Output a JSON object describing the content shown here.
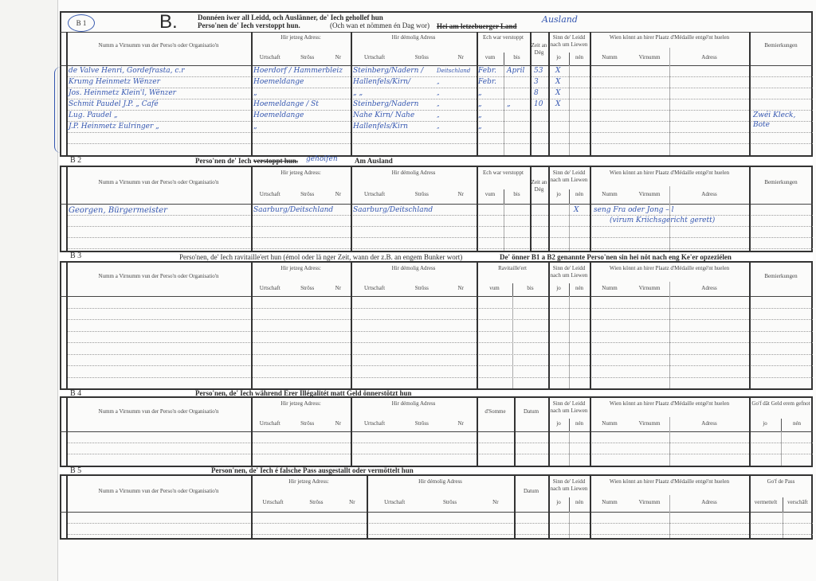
{
  "header": {
    "badge": "B 1",
    "big_letter": "B.",
    "title_line1": "Donnéen iwer all Leidd, och Auslänner, de' Iech gehollef hun",
    "title_line2": "Perso'nen de' Iech verstoppt hun.",
    "title_line2_note": "(Och wan et nömmen én Dag wor)",
    "struck_text": "Hei am letzebuerger Land",
    "handwritten_annotation": "Ausland"
  },
  "labels": {
    "name": "Numm a Virnumm vun der Perso'n oder Organisatio'n",
    "current_address": "Hir jetzeg Adress:",
    "former_address": "Hir démolig Adress",
    "urtschaft": "Urtschaft",
    "stross": "Strôss",
    "nr": "Nr",
    "hidden": "Ech war verstoppt",
    "vum": "vum",
    "bis": "bis",
    "zeit": "Zeit an Dég",
    "alive": "Sinn de' Leidd nach um Liewen",
    "jo": "jo",
    "nen": "nén",
    "medal": "Wien könnt an hirer Plaatz d'Médaille entgé'nt huelen",
    "numm": "Numm",
    "virnumm": "Virnumm",
    "adress": "Adress",
    "remarks": "Bemierkungen",
    "ravitailleert": "Ravitaille'ert",
    "somme": "d'Somme",
    "datum": "Datum",
    "geld": "Go'f dât Geld erem gefnot",
    "pass": "Go'f de Pass",
    "vermettelt": "vermettelt",
    "verschaft": "verschâft"
  },
  "sections": {
    "b2": {
      "code": "B 2",
      "title_pre": "Perso'nen de' Iech",
      "title_struck": "verstoppt hun.",
      "title_handwritten": "geholfen",
      "title_post": "Am Ausland"
    },
    "b3": {
      "code": "B 3",
      "title": "Perso'nen, de' Iech ravitaille'ert hun (émol oder lä nger Zeit, wann der z.B. an engem Bunker wort)",
      "title_bold": "De' önner B1 a B2 genannte Perso'nen sin hei nöt nach eng Ke'er opzeziélen"
    },
    "b4": {
      "code": "B 4",
      "title": "Perso'nen, de' Iech während Erer Illégalitét matt Geld önnerstötzt hun"
    },
    "b5": {
      "code": "B 5",
      "title": "Person'nen, de' Iech é falsche Pass ausgestallt oder vermöttelt hun"
    }
  },
  "b1_rows": [
    {
      "name": "de Valve Henri, Gordefrasta, c.r",
      "current": "Hoerdorf / Hammerbleiz",
      "former": "Steinberg/Nadern /",
      "former_country": "Deitschland",
      "vum": "Febr.",
      "bis": "April",
      "zeit": "53",
      "jo": "X"
    },
    {
      "name": "Krumg Heinmetz Wënzer",
      "current": "Hoemeldange",
      "former": "Hallenfels/Kirn/",
      "former_country": "„",
      "vum": "Febr.",
      "zeit": "3",
      "jo": "X"
    },
    {
      "name": "Jos. Heinmetz Klein'l, Wënzer",
      "current": "„",
      "former": "„      „",
      "former_country": "„",
      "vum": "„",
      "zeit": "8",
      "jo": "X"
    },
    {
      "name": "Schmit Paudel J.P.   „   Café",
      "current": "Hoemeldange / St",
      "former": "Steinberg/Nadern",
      "former_country": "„",
      "vum": "„",
      "bis": "„",
      "zeit": "10",
      "jo": "X"
    },
    {
      "name": "Lug. Paudel      „",
      "current": "Hoemeldange",
      "former": "Nahe Kirn/ Nahe",
      "former_country": "„",
      "vum": "„",
      "remarks": "Zwéi Kleck,"
    },
    {
      "name": "J.P. Heinmetz Eulringer „",
      "current": "„",
      "former": "Hallenfels/Kirn",
      "former_country": "„",
      "vum": "„",
      "remarks": "Bote"
    }
  ],
  "b2_rows": [
    {
      "name": "Georgen, Bürgermeister",
      "current": "Saarburg/Deitschland",
      "former": "Saarburg/Deitschland",
      "nen": "X",
      "medal": "seng Fra oder Jong – l",
      "medal2": "(virum Kriichsgericht gerett)"
    }
  ],
  "colors": {
    "ink": "#3456b0",
    "rule": "#333333",
    "paper": "#fbfbfa"
  }
}
